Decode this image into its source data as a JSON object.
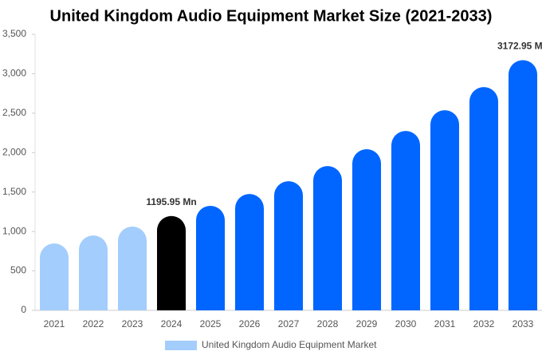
{
  "chart_data": {
    "type": "bar",
    "title": "United Kingdom Audio Equipment Market Size (2021-2033)",
    "categories": [
      "2021",
      "2022",
      "2023",
      "2024",
      "2025",
      "2026",
      "2027",
      "2028",
      "2029",
      "2030",
      "2031",
      "2032",
      "2033"
    ],
    "series": [
      {
        "name": "United Kingdom Audio Equipment Market",
        "color": "#a3cdfc",
        "values": [
          849,
          950,
          1062,
          1195.95,
          1325,
          1476,
          1638,
          1830,
          2043,
          2275,
          2538,
          2831,
          3172.95
        ],
        "value_labels": [
          null,
          null,
          null,
          "1195.95 Mn",
          null,
          null,
          null,
          null,
          null,
          null,
          null,
          null,
          "3172.95 Mn"
        ],
        "colors": [
          "#a3cdfc",
          "#a3cdfc",
          "#a3cdfc",
          "#000000",
          "#0066ff",
          "#0066ff",
          "#0066ff",
          "#0066ff",
          "#0066ff",
          "#0066ff",
          "#0066ff",
          "#0066ff",
          "#0066ff"
        ]
      }
    ],
    "ylim": [
      0,
      3500
    ],
    "yticks": [
      0,
      500,
      {
        "value": 1000,
        "label": "1,000"
      },
      {
        "value": 1500,
        "label": "1,500"
      },
      {
        "value": 2000,
        "label": "2,000"
      },
      {
        "value": 2500,
        "label": "2,500"
      },
      {
        "value": 3000,
        "label": "3,000"
      },
      {
        "value": 3500,
        "label": "3,500"
      }
    ],
    "grid": false
  }
}
